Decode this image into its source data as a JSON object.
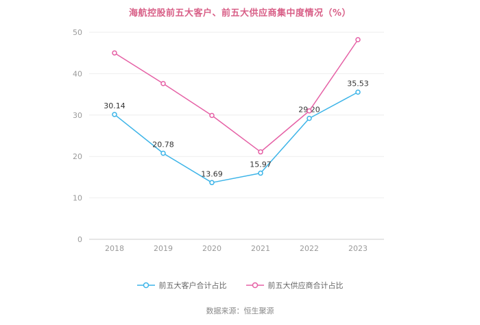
{
  "title": "海航控股前五大客户、前五大供应商集中度情况（%）",
  "source": "数据来源：恒生聚源",
  "colors": {
    "title": "#d85f87",
    "customers": "#3cb4e8",
    "suppliers": "#e560a5",
    "grid": "#eeeeee",
    "axis": "#cccccc",
    "tick_text": "#999999",
    "data_label": "#333333"
  },
  "chart_data": {
    "type": "line",
    "title": "海航控股前五大客户、前五大供应商集中度情况（%）",
    "categories": [
      "2018",
      "2019",
      "2020",
      "2021",
      "2022",
      "2023"
    ],
    "series": [
      {
        "name": "前五大客户合计占比",
        "color": "#3cb4e8",
        "values": [
          30.14,
          20.78,
          13.69,
          15.97,
          29.2,
          35.53
        ],
        "labels": [
          "30.14",
          "20.78",
          "13.69",
          "15.97",
          "29.20",
          "35.53"
        ]
      },
      {
        "name": "前五大供应商合计占比",
        "color": "#e560a5",
        "values": [
          45.0,
          37.6,
          29.9,
          21.1,
          31.0,
          48.2
        ],
        "labels": []
      }
    ],
    "xlabel": "",
    "ylabel": "",
    "ylim": [
      0,
      50
    ],
    "yticks": [
      0,
      10,
      20,
      30,
      40,
      50
    ],
    "grid": true,
    "legend_position": "bottom"
  }
}
